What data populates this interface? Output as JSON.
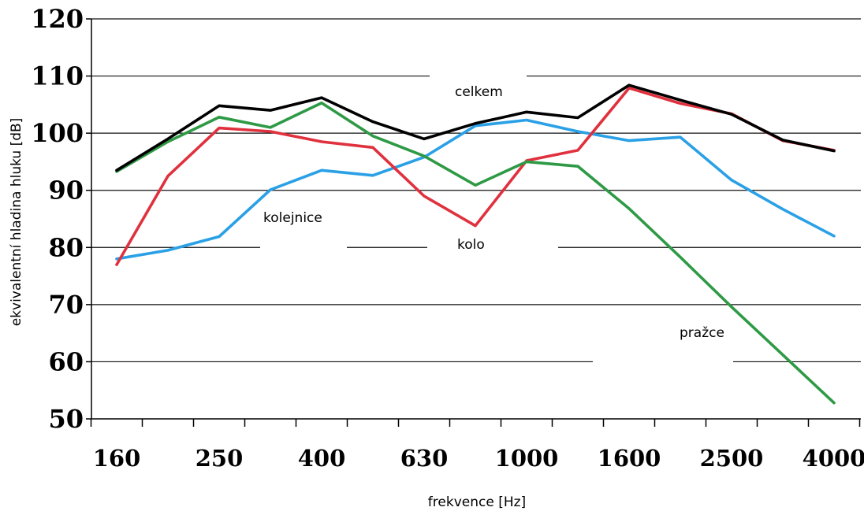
{
  "chart_data": {
    "type": "line",
    "title": "",
    "xlabel": "frekvence [Hz]",
    "ylabel": "ekvivalentní hladina hluku [dB]",
    "ylim": [
      50,
      120
    ],
    "yticks": [
      50,
      60,
      70,
      80,
      90,
      100,
      110,
      120
    ],
    "x": [
      "160",
      "200",
      "250",
      "315",
      "400",
      "500",
      "630",
      "800",
      "1000",
      "1250",
      "1600",
      "2000",
      "2500",
      "3150",
      "4000"
    ],
    "xtick_labels": [
      "160",
      "250",
      "400",
      "630",
      "1000",
      "1600",
      "2500",
      "4000"
    ],
    "grid": true,
    "legend": "inline",
    "series": [
      {
        "name": "celkem",
        "color": "#000000",
        "values": [
          93.5,
          99,
          104.8,
          104,
          106.2,
          102,
          99,
          101.7,
          103.7,
          102.7,
          108.4,
          105.8,
          103.3,
          98.8,
          96.9
        ]
      },
      {
        "name": "pražce",
        "color": "#2e9a45",
        "values": [
          93.3,
          98.5,
          102.8,
          101,
          105.3,
          99.5,
          96,
          90.9,
          95,
          94.2,
          86.8,
          78.3,
          69.6,
          61.2,
          52.8
        ]
      },
      {
        "name": "kolo",
        "color": "#e0313e",
        "values": [
          77,
          92.5,
          100.9,
          100.3,
          98.5,
          97.5,
          89,
          83.8,
          95.2,
          97,
          107.9,
          105.2,
          103.4,
          98.7,
          97
        ]
      },
      {
        "name": "kolejnice",
        "color": "#2aa0e6",
        "values": [
          78,
          79.5,
          81.9,
          90.1,
          93.5,
          92.6,
          95.8,
          101.3,
          102.3,
          100.3,
          98.7,
          99.3,
          91.8,
          86.7,
          82
        ]
      }
    ]
  }
}
